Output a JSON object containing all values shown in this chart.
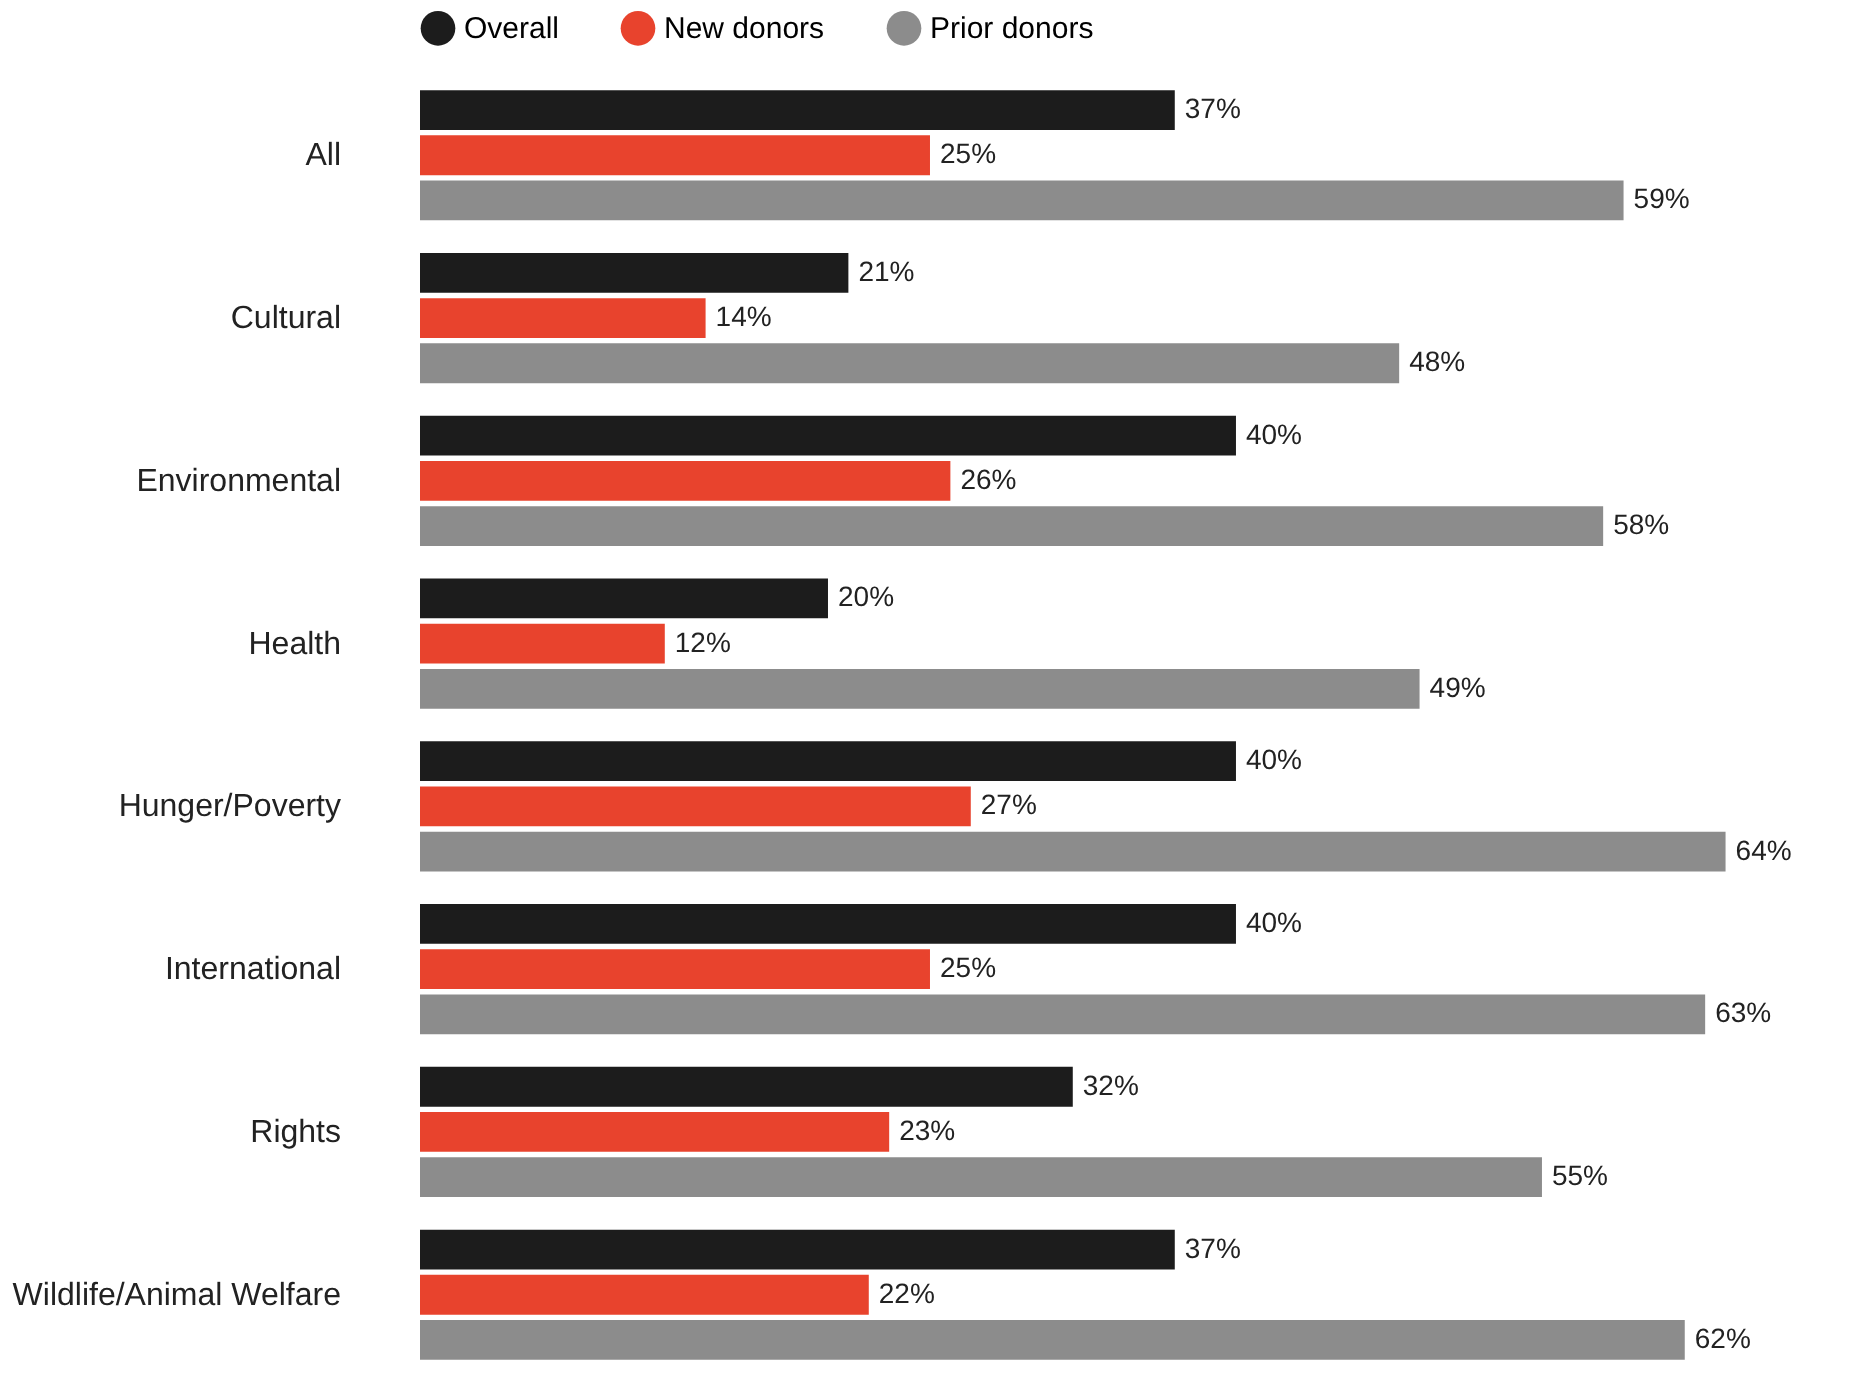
{
  "chart_data": {
    "type": "bar",
    "orientation": "horizontal",
    "legend": "top",
    "categories": [
      "All",
      "Cultural",
      "Environmental",
      "Health",
      "Hunger/Poverty",
      "International",
      "Rights",
      "Wildlife/Animal Welfare"
    ],
    "series": [
      {
        "name": "Overall",
        "color": "#1c1c1c",
        "values": [
          37,
          21,
          40,
          20,
          40,
          40,
          32,
          37
        ],
        "value_labels": [
          "37%",
          "21%",
          "40%",
          "20%",
          "40%",
          "40%",
          "32%",
          "37%"
        ]
      },
      {
        "name": "New donors",
        "color": "#e8432d",
        "values": [
          25,
          14,
          26,
          12,
          27,
          25,
          23,
          22
        ],
        "value_labels": [
          "25%",
          "14%",
          "26%",
          "12%",
          "27%",
          "25%",
          "23%",
          "22%"
        ]
      },
      {
        "name": "Prior donors",
        "color": "#8c8c8c",
        "values": [
          59,
          48,
          58,
          49,
          64,
          63,
          55,
          62
        ],
        "value_labels": [
          "59%",
          "48%",
          "58%",
          "49%",
          "64%",
          "63%",
          "55%",
          "62%"
        ]
      }
    ]
  }
}
